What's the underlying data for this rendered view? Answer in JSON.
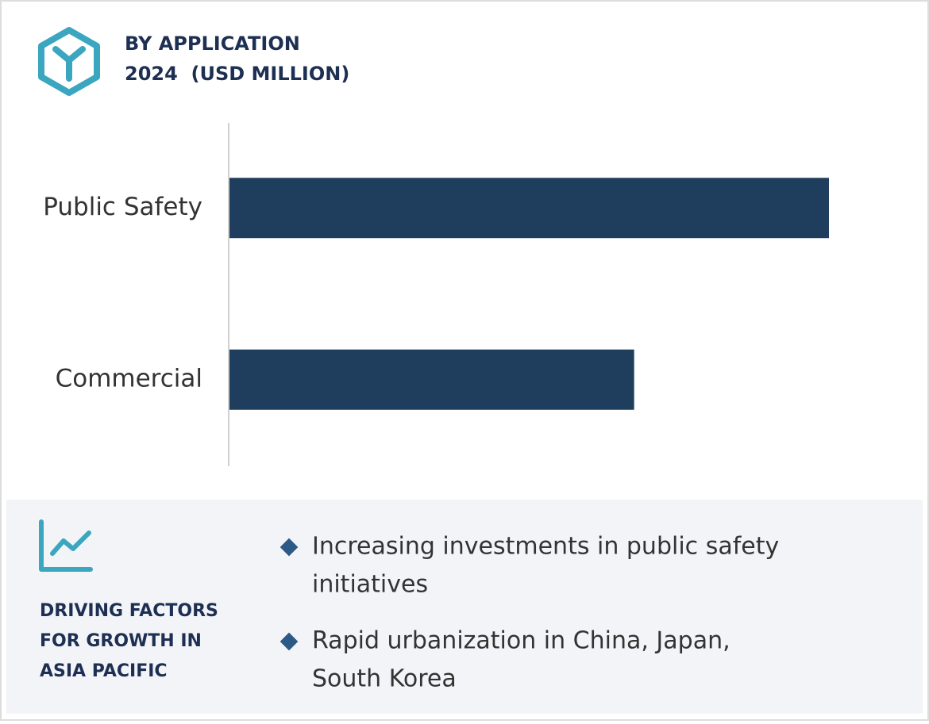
{
  "header": {
    "title": [
      "BY APPLICATION",
      "2024  (USD MILLION)"
    ]
  },
  "chart_data": {
    "type": "bar",
    "orientation": "horizontal",
    "categories": [
      "Public Safety",
      "Commercial"
    ],
    "values": [
      100,
      67.5
    ],
    "color": "#1f3d5c",
    "xlim": [
      0,
      100
    ]
  },
  "drivers": {
    "title": [
      "DRIVING FACTORS",
      "FOR GROWTH IN",
      "ASIA PACIFIC"
    ],
    "items": [
      [
        "Increasing investments in public safety",
        "initiatives"
      ],
      [
        "Rapid urbanization in China, Japan,",
        "South Korea"
      ]
    ]
  }
}
